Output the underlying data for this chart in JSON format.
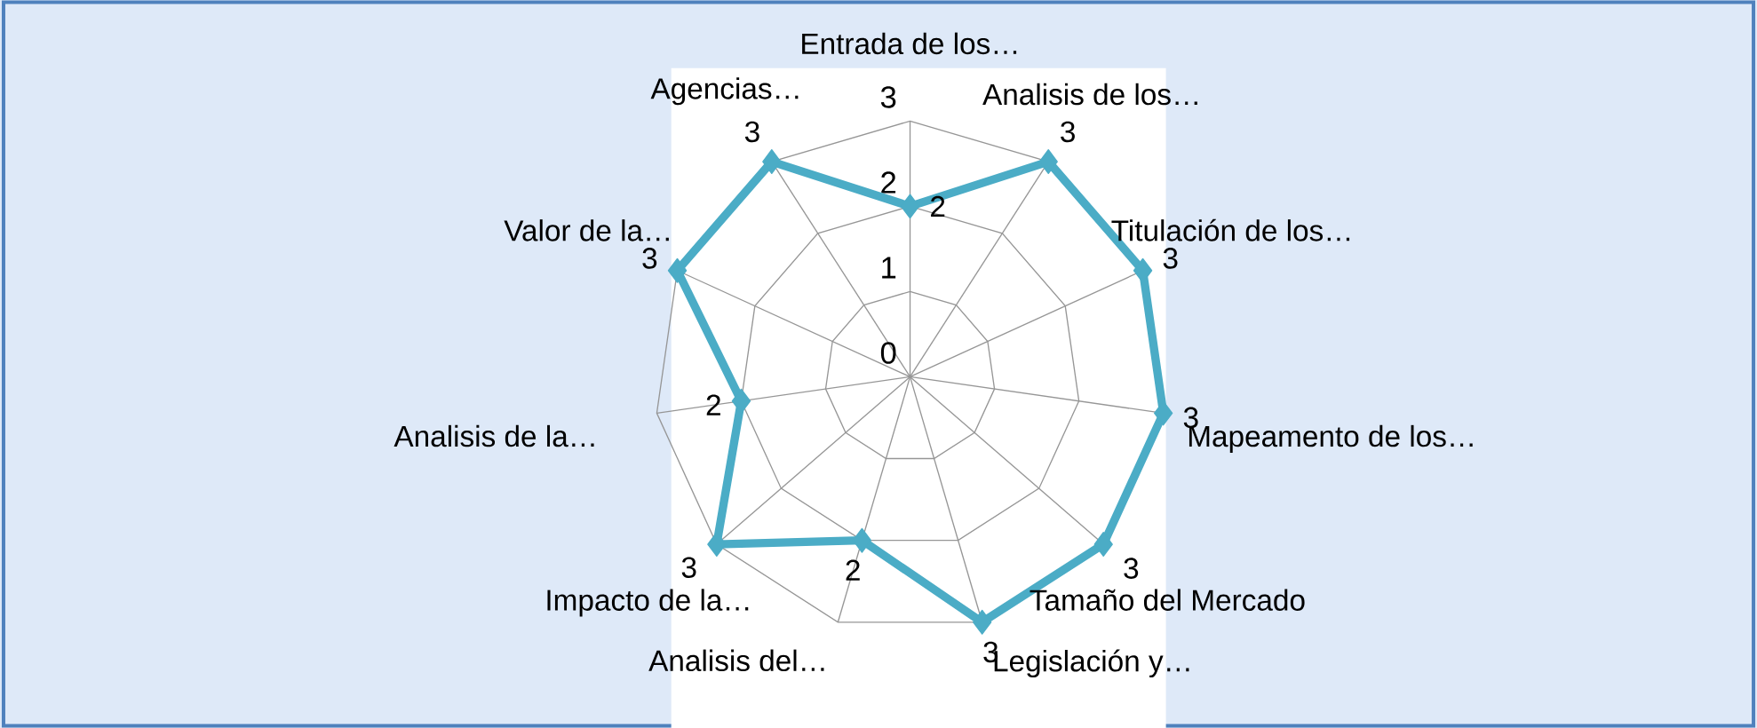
{
  "chart_data": {
    "type": "radar",
    "categories": [
      "Entrada de los…",
      "Analisis de los…",
      "Titulación de los…",
      "Mapeamento de los…",
      "Tamaño del Mercado",
      "Legislación y…",
      "Analisis del…",
      "Impacto de la…",
      "Analisis de la…",
      "Valor de la…",
      "Agencias…"
    ],
    "series": [
      {
        "color": "#4bacc6",
        "values": [
          2,
          3,
          3,
          3,
          3,
          3,
          2,
          3,
          2,
          3,
          3
        ]
      }
    ],
    "ylim": [
      0,
      3
    ],
    "yticks": [
      0,
      1,
      2,
      3
    ],
    "grid": true,
    "marker": "diamond",
    "data_labels": true
  }
}
